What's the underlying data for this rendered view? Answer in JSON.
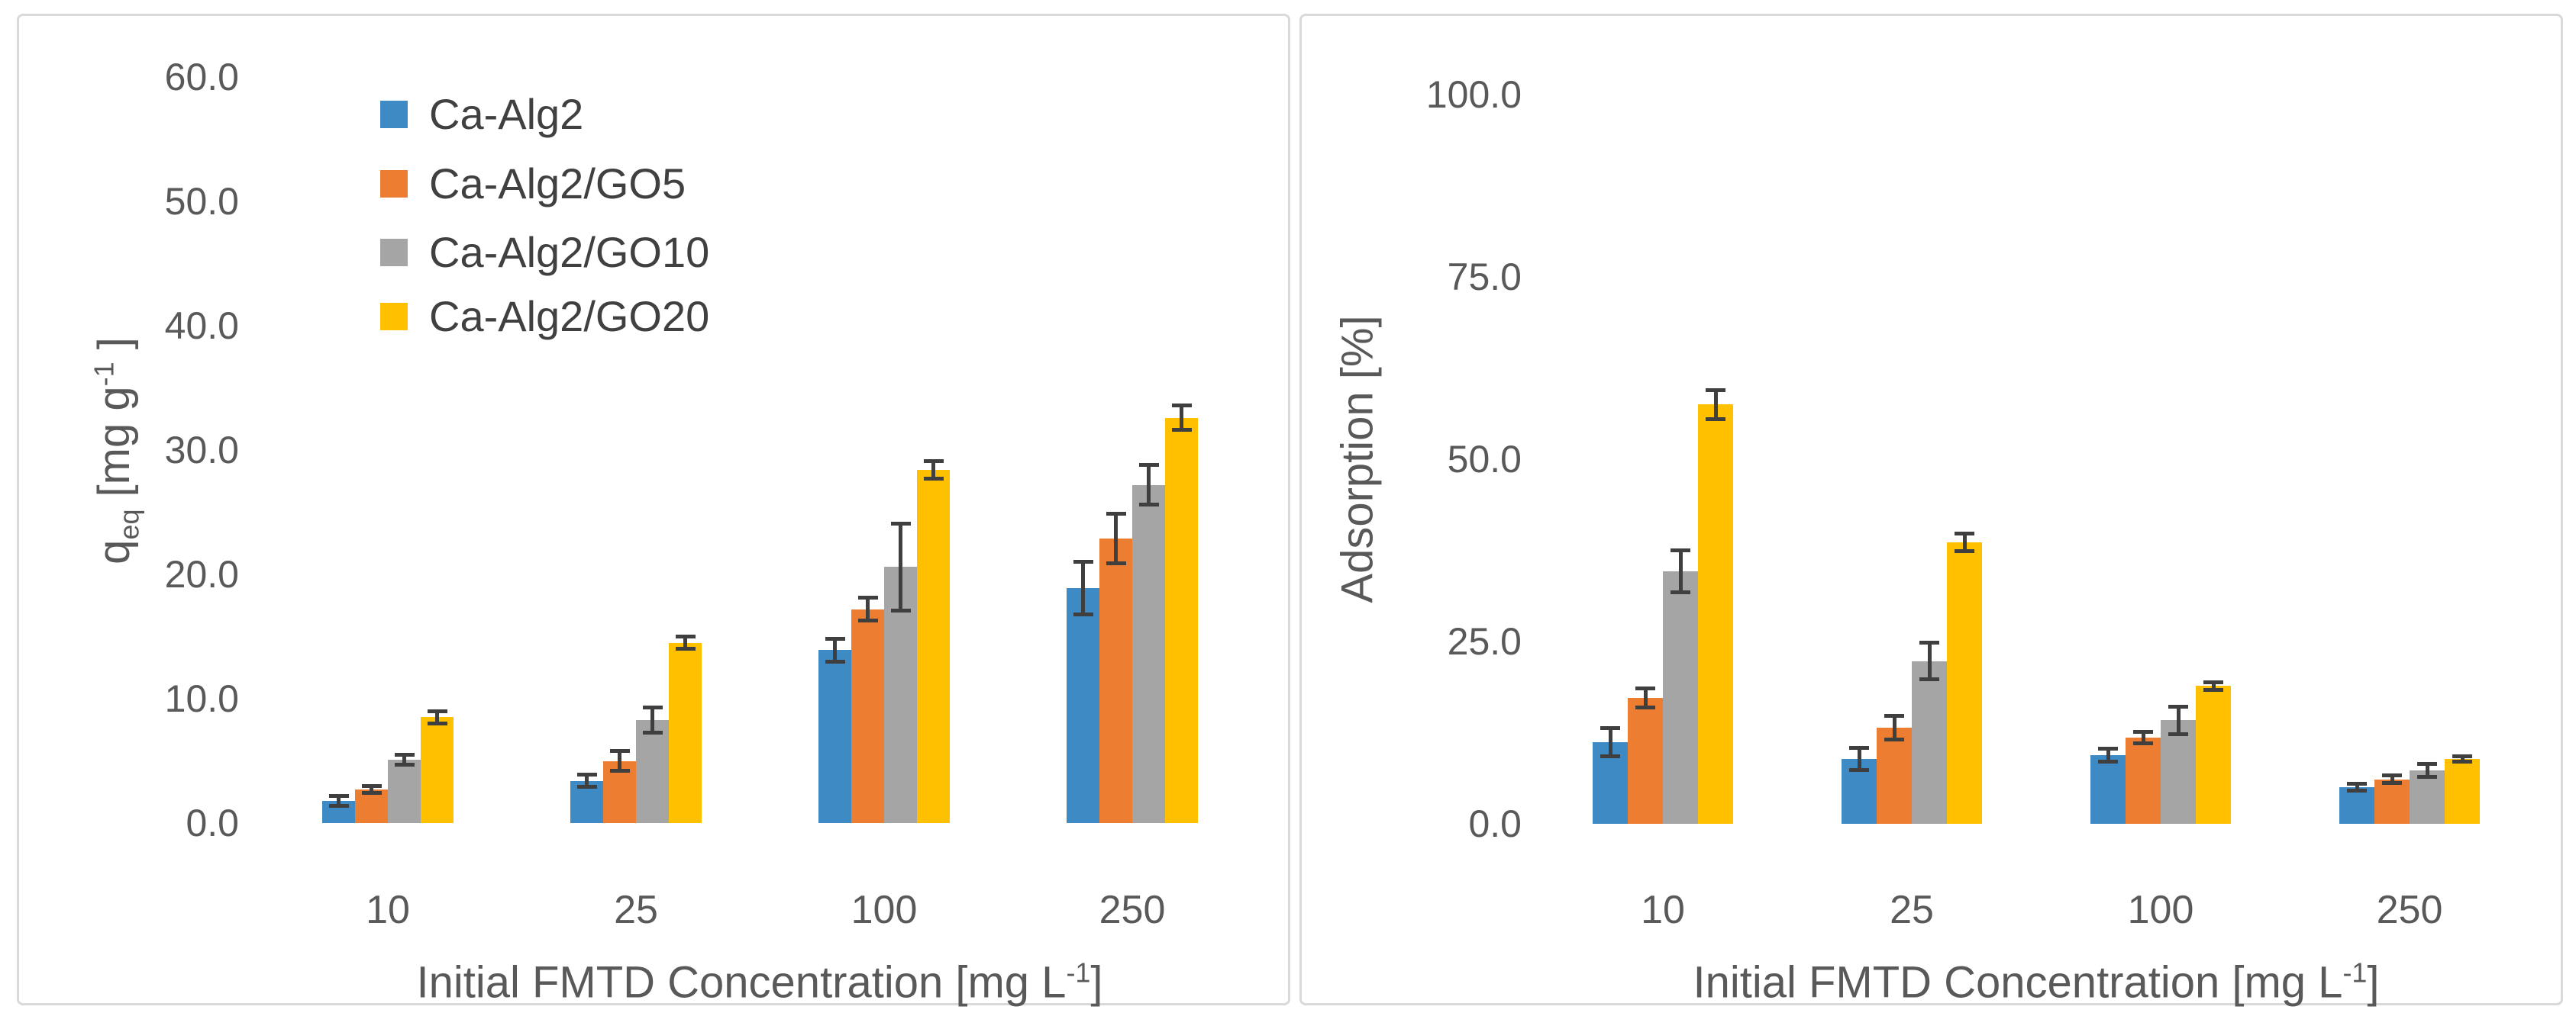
{
  "figure": {
    "background": "#ffffff",
    "panel_border_color": "#d9d9d9",
    "text_color": "#595959",
    "error_bar_color": "#3f3f3f"
  },
  "chart_data": [
    {
      "type": "bar",
      "title": "",
      "xlabel": "Initial FMTD Concentration [mg L^{-1}]",
      "ylabel": "q_{eq} [mg g^{-1} ]",
      "categories": [
        "10",
        "25",
        "100",
        "250"
      ],
      "ylim": [
        0,
        60
      ],
      "grid": false,
      "legend_position": "upper-left-inside",
      "yticks": [
        {
          "v": 0,
          "label": "0.0"
        },
        {
          "v": 10,
          "label": "10.0"
        },
        {
          "v": 20,
          "label": "20.0"
        },
        {
          "v": 30,
          "label": "30.0"
        },
        {
          "v": 40,
          "label": "40.0"
        },
        {
          "v": 50,
          "label": "50.0"
        },
        {
          "v": 60,
          "label": "60.0"
        }
      ],
      "series": [
        {
          "name": "Ca-Alg2",
          "color": "#3d8ac4",
          "values": [
            1.8,
            3.4,
            13.9,
            18.9
          ],
          "errors": [
            0.4,
            0.5,
            0.9,
            2.1
          ]
        },
        {
          "name": "Ca-Alg2/GO5",
          "color": "#ed7d31",
          "values": [
            2.7,
            5.0,
            17.2,
            22.9
          ],
          "errors": [
            0.3,
            0.8,
            0.9,
            2.0
          ]
        },
        {
          "name": "Ca-Alg2/GO10",
          "color": "#a5a5a5",
          "values": [
            5.1,
            8.3,
            20.6,
            27.2
          ],
          "errors": [
            0.4,
            1.0,
            3.5,
            1.6
          ]
        },
        {
          "name": "Ca-Alg2/GO20",
          "color": "#ffc000",
          "values": [
            8.5,
            14.5,
            28.4,
            32.6
          ],
          "errors": [
            0.5,
            0.5,
            0.7,
            1.0
          ]
        }
      ]
    },
    {
      "type": "bar",
      "title": "",
      "xlabel": "Initial FMTD Concentration [mg L^{-1}]",
      "ylabel": "Adsorption [%]",
      "categories": [
        "10",
        "25",
        "100",
        "250"
      ],
      "ylim": [
        0,
        100
      ],
      "grid": false,
      "legend_position": "none",
      "yticks": [
        {
          "v": 0,
          "label": "0.0"
        },
        {
          "v": 25,
          "label": "25.0"
        },
        {
          "v": 50,
          "label": "50.0"
        },
        {
          "v": 75,
          "label": "75.0"
        },
        {
          "v": 100,
          "label": "100.0"
        }
      ],
      "series": [
        {
          "name": "Ca-Alg2",
          "color": "#3d8ac4",
          "values": [
            11.2,
            8.9,
            9.4,
            5.0
          ],
          "errors": [
            1.9,
            1.5,
            0.9,
            0.5
          ]
        },
        {
          "name": "Ca-Alg2/GO5",
          "color": "#ed7d31",
          "values": [
            17.3,
            13.2,
            11.8,
            6.1
          ],
          "errors": [
            1.3,
            1.6,
            0.8,
            0.5
          ]
        },
        {
          "name": "Ca-Alg2/GO10",
          "color": "#a5a5a5",
          "values": [
            34.6,
            22.3,
            14.2,
            7.3
          ],
          "errors": [
            2.9,
            2.5,
            1.9,
            0.9
          ]
        },
        {
          "name": "Ca-Alg2/GO20",
          "color": "#ffc000",
          "values": [
            57.5,
            38.6,
            18.9,
            8.9
          ],
          "errors": [
            2.0,
            1.2,
            0.5,
            0.4
          ]
        }
      ]
    }
  ]
}
